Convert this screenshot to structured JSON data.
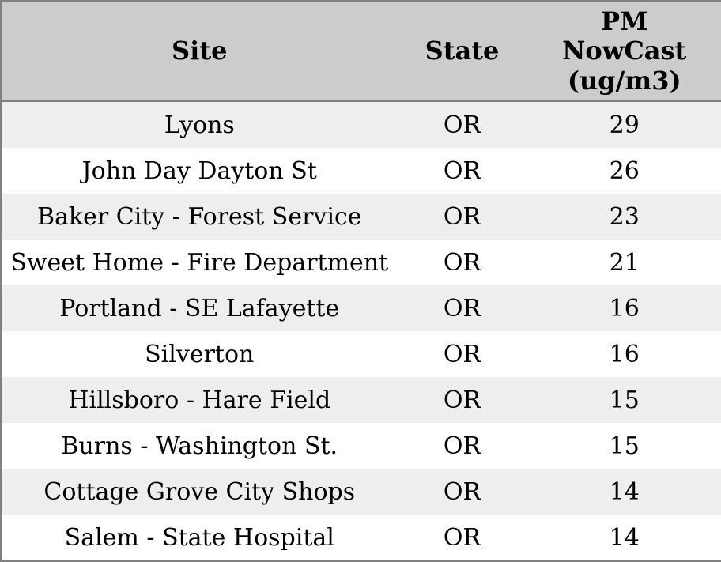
{
  "chart_data": {
    "type": "table",
    "columns": [
      "Site",
      "State",
      "PM NowCast (ug/m3)"
    ],
    "column_display": [
      "Site",
      "State",
      "PM\nNowCast\n(ug/m3)"
    ],
    "rows": [
      {
        "site": "Lyons",
        "state": "OR",
        "pm": "29"
      },
      {
        "site": "John Day Dayton St",
        "state": "OR",
        "pm": "26"
      },
      {
        "site": "Baker City - Forest Service",
        "state": "OR",
        "pm": "23"
      },
      {
        "site": "Sweet Home - Fire Department",
        "state": "OR",
        "pm": "21"
      },
      {
        "site": "Portland - SE Lafayette",
        "state": "OR",
        "pm": "16"
      },
      {
        "site": "Silverton",
        "state": "OR",
        "pm": "16"
      },
      {
        "site": "Hillsboro - Hare Field",
        "state": "OR",
        "pm": "15"
      },
      {
        "site": "Burns - Washington St.",
        "state": "OR",
        "pm": "15"
      },
      {
        "site": "Cottage Grove City Shops",
        "state": "OR",
        "pm": "14"
      },
      {
        "site": "Salem - State Hospital",
        "state": "OR",
        "pm": "14"
      }
    ],
    "layout": {
      "grid": "off",
      "row_striping": true
    },
    "colors": {
      "header_bg": "#cccccc",
      "row_alt_bg": "#eeeeee",
      "row_bg": "#ffffff",
      "border": "#808080",
      "text": "#000000"
    }
  }
}
